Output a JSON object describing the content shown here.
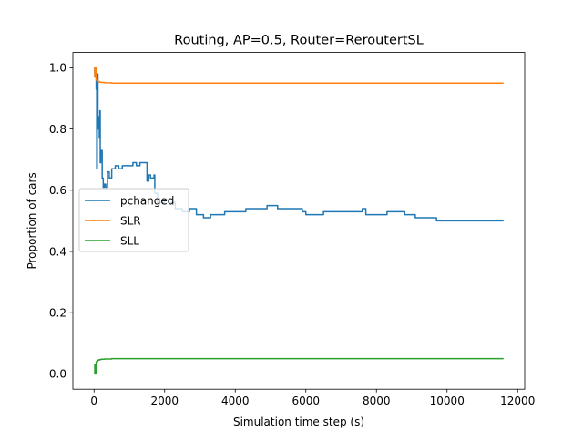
{
  "chart_data": {
    "type": "line",
    "title": "Routing, AP=0.5, Router=ReroutertSL",
    "xlabel": "Simulation time step (s)",
    "ylabel": "Proportion of cars",
    "xlim": [
      -600,
      12200
    ],
    "ylim": [
      -0.05,
      1.05
    ],
    "x_ticks": [
      0,
      2000,
      4000,
      6000,
      8000,
      10000,
      12000
    ],
    "y_ticks": [
      0.0,
      0.2,
      0.4,
      0.6,
      0.8,
      1.0
    ],
    "x_tick_labels": [
      "0",
      "2000",
      "4000",
      "6000",
      "8000",
      "10000",
      "12000"
    ],
    "y_tick_labels": [
      "0.0",
      "0.2",
      "0.4",
      "0.6",
      "0.8",
      "1.0"
    ],
    "grid": false,
    "legend_position": "center-left",
    "series": [
      {
        "name": "pchanged",
        "color": "#1f77b4",
        "x": [
          0,
          20,
          40,
          60,
          75,
          90,
          110,
          130,
          150,
          165,
          175,
          190,
          210,
          230,
          260,
          290,
          330,
          380,
          430,
          500,
          600,
          700,
          800,
          900,
          1000,
          1100,
          1200,
          1300,
          1400,
          1500,
          1550,
          1600,
          1650,
          1700,
          1720,
          1800,
          1900,
          2000,
          2100,
          2300,
          2500,
          2700,
          2900,
          3100,
          3300,
          3500,
          3700,
          3900,
          4100,
          4300,
          4500,
          4700,
          4900,
          5000,
          5200,
          5400,
          5600,
          5800,
          5900,
          6000,
          6200,
          6500,
          6800,
          7100,
          7400,
          7600,
          7700,
          8000,
          8300,
          8500,
          8800,
          9100,
          9400,
          9700,
          10000,
          10300,
          10600,
          11000,
          11300,
          11600
        ],
        "y": [
          1.0,
          0.97,
          1.0,
          0.93,
          0.67,
          0.98,
          0.8,
          0.84,
          0.77,
          0.86,
          0.69,
          0.72,
          0.73,
          0.64,
          0.61,
          0.62,
          0.61,
          0.66,
          0.64,
          0.67,
          0.68,
          0.67,
          0.68,
          0.68,
          0.68,
          0.69,
          0.68,
          0.69,
          0.69,
          0.63,
          0.65,
          0.64,
          0.64,
          0.65,
          0.59,
          0.56,
          0.56,
          0.57,
          0.56,
          0.54,
          0.53,
          0.54,
          0.52,
          0.51,
          0.52,
          0.52,
          0.53,
          0.53,
          0.53,
          0.54,
          0.54,
          0.54,
          0.55,
          0.55,
          0.54,
          0.54,
          0.54,
          0.54,
          0.53,
          0.52,
          0.52,
          0.53,
          0.53,
          0.53,
          0.53,
          0.54,
          0.52,
          0.52,
          0.53,
          0.53,
          0.52,
          0.51,
          0.51,
          0.5,
          0.5,
          0.5,
          0.5,
          0.5,
          0.5,
          0.5
        ]
      },
      {
        "name": "SLR",
        "color": "#ff7f0e",
        "x": [
          0,
          20,
          40,
          60,
          80,
          100,
          150,
          200,
          300,
          500,
          1000,
          2000,
          4000,
          6000,
          8000,
          10000,
          11600
        ],
        "y": [
          1.0,
          0.97,
          1.0,
          0.96,
          0.96,
          0.955,
          0.953,
          0.952,
          0.951,
          0.95,
          0.95,
          0.95,
          0.95,
          0.95,
          0.95,
          0.95,
          0.95
        ]
      },
      {
        "name": "SLL",
        "color": "#2ca02c",
        "x": [
          0,
          20,
          40,
          60,
          80,
          100,
          150,
          200,
          300,
          500,
          1000,
          2000,
          4000,
          6000,
          8000,
          10000,
          11600
        ],
        "y": [
          0.0,
          0.03,
          0.0,
          0.04,
          0.04,
          0.045,
          0.047,
          0.048,
          0.049,
          0.05,
          0.05,
          0.05,
          0.05,
          0.05,
          0.05,
          0.05,
          0.05
        ]
      }
    ]
  }
}
